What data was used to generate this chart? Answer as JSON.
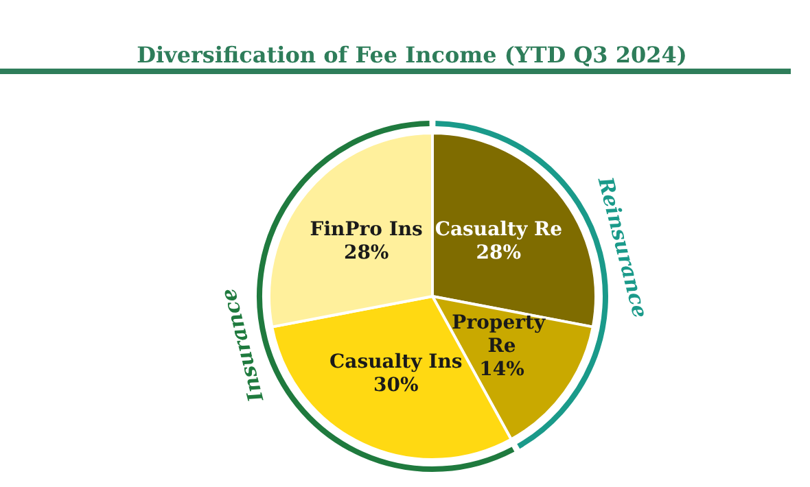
{
  "chart_data": {
    "type": "pie",
    "title": "Diversification of Fee Income (YTD Q3 2024)",
    "categories": [
      "Casualty Re",
      "Property Re",
      "Casualty Ins",
      "FinPro Ins"
    ],
    "values": [
      28,
      14,
      30,
      28
    ],
    "value_labels": [
      "28%",
      "14%",
      "30%",
      "28%"
    ],
    "colors": [
      "#7f6c00",
      "#c9a900",
      "#ffd912",
      "#fff09c"
    ],
    "annotations": [
      "Reinsurance",
      "Insurance"
    ],
    "legend": false
  }
}
